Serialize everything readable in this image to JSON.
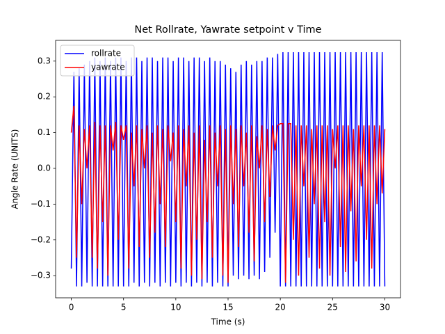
{
  "chart_data": {
    "type": "line",
    "title": "Net Rollrate, Yawrate setpoint v Time",
    "x_label": "Time (s)",
    "y_label": "Angle Rate (UNITS)",
    "xlim": [
      -1.5,
      31.5
    ],
    "ylim": [
      -0.362,
      0.358
    ],
    "xticks": [
      0,
      5,
      10,
      15,
      20,
      25,
      30
    ],
    "yticks": [
      {
        "value": -0.3,
        "label": "−0.3"
      },
      {
        "value": -0.2,
        "label": "−0.2"
      },
      {
        "value": -0.1,
        "label": "−0.1"
      },
      {
        "value": 0,
        "label": "0.0"
      },
      0.1,
      0.2,
      0.3
    ],
    "legend": "upper left",
    "x": [
      0,
      0.25,
      0.5,
      0.75,
      1,
      1.25,
      1.5,
      1.75,
      2,
      2.25,
      2.5,
      2.75,
      3,
      3.25,
      3.5,
      3.75,
      4,
      4.25,
      4.5,
      4.75,
      5,
      5.25,
      5.5,
      5.75,
      6,
      6.25,
      6.5,
      6.75,
      7,
      7.25,
      7.5,
      7.75,
      8,
      8.25,
      8.5,
      8.75,
      9,
      9.25,
      9.5,
      9.75,
      10,
      10.25,
      10.5,
      10.75,
      11,
      11.25,
      11.5,
      11.75,
      12,
      12.25,
      12.5,
      12.75,
      13,
      13.25,
      13.5,
      13.75,
      14,
      14.25,
      14.5,
      14.75,
      15,
      15.25,
      15.5,
      15.75,
      16,
      16.25,
      16.5,
      16.75,
      17,
      17.25,
      17.5,
      17.75,
      18,
      18.25,
      18.5,
      18.75,
      19,
      19.25,
      19.5,
      19.75,
      20,
      20.25,
      20.5,
      20.75,
      21,
      21.25,
      21.5,
      21.75,
      22,
      22.25,
      22.5,
      22.75,
      23,
      23.25,
      23.5,
      23.75,
      24,
      24.25,
      24.5,
      24.75,
      25,
      25.25,
      25.5,
      25.75,
      26,
      26.25,
      26.5,
      26.75,
      27,
      27.25,
      27.5,
      27.75,
      28,
      28.25,
      28.5,
      28.75,
      29,
      29.25,
      29.5,
      29.75,
      30
    ],
    "series": [
      {
        "name": "rollrate",
        "color": "#0000ff",
        "values": [
          -0.28,
          0.27,
          -0.33,
          0.28,
          -0.33,
          0.29,
          -0.32,
          0.3,
          -0.33,
          0.31,
          -0.33,
          0.3,
          -0.33,
          0.31,
          -0.33,
          0.3,
          -0.33,
          0.31,
          -0.33,
          0.31,
          -0.33,
          0.3,
          -0.33,
          0.31,
          -0.32,
          0.31,
          -0.33,
          0.3,
          -0.32,
          0.31,
          -0.33,
          0.31,
          -0.32,
          0.3,
          -0.33,
          0.31,
          -0.32,
          0.31,
          -0.33,
          0.3,
          -0.32,
          0.31,
          -0.33,
          0.31,
          -0.32,
          0.3,
          -0.33,
          0.31,
          -0.32,
          0.31,
          -0.33,
          0.3,
          -0.32,
          0.31,
          -0.33,
          0.3,
          -0.32,
          0.3,
          -0.33,
          0.29,
          -0.33,
          0.28,
          -0.3,
          0.27,
          -0.31,
          0.29,
          -0.3,
          0.3,
          -0.31,
          0.29,
          -0.3,
          0.3,
          -0.31,
          0.3,
          -0.29,
          0.31,
          -0.25,
          0.31,
          -0.18,
          0.32,
          -0.33,
          0.325,
          -0.33,
          0.325,
          -0.33,
          0.325,
          -0.33,
          0.325,
          -0.33,
          0.325,
          -0.33,
          0.325,
          -0.33,
          0.325,
          -0.33,
          0.325,
          -0.33,
          0.325,
          -0.33,
          0.325,
          -0.33,
          0.325,
          -0.33,
          0.325,
          -0.33,
          0.325,
          -0.33,
          0.325,
          -0.33,
          0.325,
          -0.33,
          0.325,
          -0.33,
          0.325,
          -0.33,
          0.325,
          -0.33,
          0.325,
          -0.33,
          0.325,
          -0.33
        ]
      },
      {
        "name": "yawrate",
        "color": "#ff0000",
        "values": [
          0.1,
          0.175,
          -0.25,
          0.12,
          -0.1,
          0.11,
          0.0,
          0.12,
          -0.25,
          0.13,
          -0.28,
          0.12,
          -0.15,
          0.12,
          -0.3,
          0.12,
          0.05,
          0.13,
          -0.2,
          0.12,
          0.08,
          0.12,
          -0.28,
          0.1,
          -0.05,
          0.12,
          -0.22,
          0.11,
          0.0,
          0.12,
          -0.25,
          0.1,
          -0.18,
          0.12,
          -0.1,
          0.11,
          -0.22,
          0.12,
          0.02,
          0.1,
          -0.15,
          0.12,
          -0.28,
          0.11,
          -0.05,
          0.12,
          -0.3,
          0.1,
          -0.2,
          0.12,
          -0.31,
          0.08,
          -0.15,
          0.12,
          -0.25,
          0.1,
          -0.05,
          0.12,
          -0.3,
          0.11,
          -0.32,
          0.12,
          -0.1,
          0.11,
          -0.22,
          0.12,
          -0.05,
          0.1,
          -0.18,
          0.12,
          -0.26,
          0.09,
          0.0,
          0.12,
          -0.15,
          0.11,
          -0.08,
          0.12,
          0.05,
          0.12,
          0.125,
          0.125,
          -0.32,
          0.125,
          0.125,
          -0.2,
          0.12,
          -0.3,
          0.12,
          -0.05,
          0.12,
          -0.25,
          0.11,
          -0.1,
          0.12,
          -0.28,
          0.12,
          -0.15,
          0.12,
          -0.3,
          0.11,
          0.0,
          0.12,
          -0.22,
          0.12,
          -0.29,
          0.12,
          -0.12,
          0.11,
          -0.26,
          0.12,
          -0.05,
          0.12,
          -0.2,
          0.12,
          -0.28,
          0.12,
          -0.1,
          0.12,
          -0.07,
          0.11
        ]
      }
    ]
  }
}
